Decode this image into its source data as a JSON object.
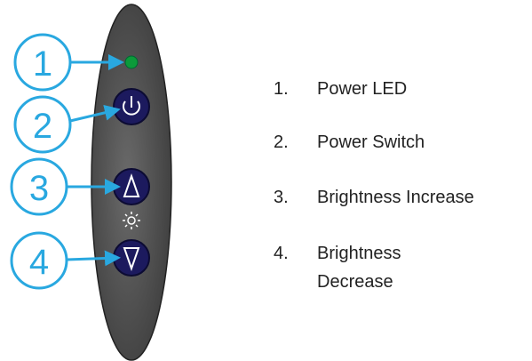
{
  "callouts": [
    "1",
    "2",
    "3",
    "4"
  ],
  "items": [
    {
      "number": "1.",
      "lines": [
        "Power LED"
      ]
    },
    {
      "number": "2.",
      "lines": [
        "Power Switch"
      ]
    },
    {
      "number": "3.",
      "lines": [
        "Brightness Increase"
      ]
    },
    {
      "number": "4.",
      "lines": [
        "Brightness",
        "Decrease"
      ]
    }
  ]
}
